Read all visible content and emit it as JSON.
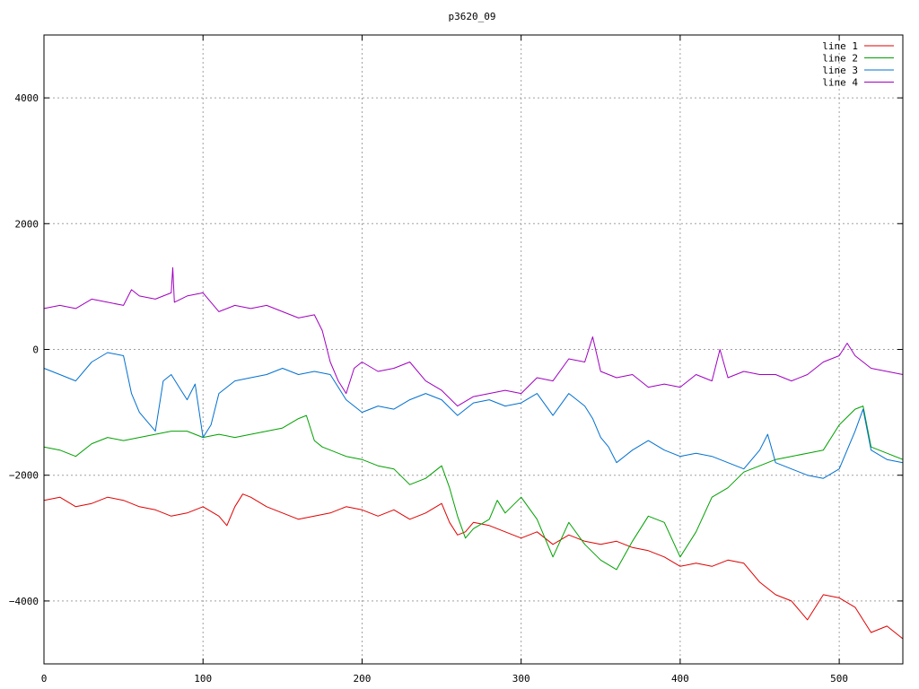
{
  "chart_data": {
    "type": "line",
    "title": "p3620_09",
    "xlabel": "",
    "ylabel": "",
    "xlim": [
      0,
      540
    ],
    "ylim": [
      -5000,
      5000
    ],
    "xticks": [
      0,
      100,
      200,
      300,
      400,
      500
    ],
    "yticks": [
      -4000,
      -2000,
      0,
      2000,
      4000
    ],
    "grid": true,
    "legend_position": "top-right",
    "series": [
      {
        "name": "line 1",
        "color": "#e00000",
        "x": [
          0,
          10,
          20,
          30,
          40,
          50,
          60,
          70,
          80,
          90,
          100,
          110,
          115,
          120,
          125,
          130,
          140,
          150,
          160,
          170,
          180,
          190,
          200,
          210,
          220,
          230,
          240,
          250,
          255,
          260,
          265,
          270,
          280,
          290,
          300,
          310,
          320,
          330,
          340,
          350,
          360,
          370,
          380,
          390,
          400,
          410,
          420,
          430,
          440,
          450,
          460,
          470,
          480,
          490,
          500,
          510,
          520,
          530,
          540
        ],
        "y": [
          -2400,
          -2350,
          -2500,
          -2450,
          -2350,
          -2400,
          -2500,
          -2550,
          -2650,
          -2600,
          -2500,
          -2650,
          -2800,
          -2500,
          -2300,
          -2350,
          -2500,
          -2600,
          -2700,
          -2650,
          -2600,
          -2500,
          -2550,
          -2650,
          -2550,
          -2700,
          -2600,
          -2450,
          -2750,
          -2950,
          -2900,
          -2750,
          -2800,
          -2900,
          -3000,
          -2900,
          -3100,
          -2950,
          -3050,
          -3100,
          -3050,
          -3150,
          -3200,
          -3300,
          -3450,
          -3400,
          -3450,
          -3350,
          -3400,
          -3700,
          -3900,
          -4000,
          -4300,
          -3900,
          -3950,
          -4100,
          -4500,
          -4400,
          -4600
        ]
      },
      {
        "name": "line 2",
        "color": "#00a000",
        "x": [
          0,
          10,
          20,
          30,
          40,
          50,
          60,
          70,
          80,
          90,
          100,
          110,
          120,
          130,
          140,
          150,
          160,
          165,
          170,
          175,
          180,
          190,
          200,
          210,
          220,
          230,
          240,
          250,
          255,
          260,
          265,
          270,
          280,
          285,
          290,
          300,
          310,
          320,
          330,
          340,
          350,
          360,
          370,
          380,
          390,
          400,
          410,
          420,
          430,
          440,
          450,
          460,
          470,
          480,
          490,
          500,
          510,
          515,
          520,
          530,
          540
        ],
        "y": [
          -1550,
          -1600,
          -1700,
          -1500,
          -1400,
          -1450,
          -1400,
          -1350,
          -1300,
          -1300,
          -1400,
          -1350,
          -1400,
          -1350,
          -1300,
          -1250,
          -1100,
          -1050,
          -1450,
          -1550,
          -1600,
          -1700,
          -1750,
          -1850,
          -1900,
          -2150,
          -2050,
          -1850,
          -2200,
          -2650,
          -3000,
          -2850,
          -2700,
          -2400,
          -2600,
          -2350,
          -2700,
          -3300,
          -2750,
          -3100,
          -3350,
          -3500,
          -3050,
          -2650,
          -2750,
          -3300,
          -2900,
          -2350,
          -2200,
          -1950,
          -1850,
          -1750,
          -1700,
          -1650,
          -1600,
          -1200,
          -950,
          -900,
          -1550,
          -1650,
          -1750
        ]
      },
      {
        "name": "line 3",
        "color": "#0070d0",
        "x": [
          0,
          10,
          20,
          30,
          40,
          50,
          55,
          60,
          70,
          75,
          80,
          85,
          90,
          95,
          100,
          105,
          110,
          120,
          130,
          140,
          150,
          160,
          170,
          180,
          190,
          200,
          210,
          220,
          230,
          240,
          250,
          260,
          270,
          280,
          290,
          300,
          310,
          320,
          330,
          340,
          345,
          350,
          355,
          360,
          370,
          380,
          390,
          400,
          410,
          420,
          430,
          440,
          450,
          455,
          460,
          470,
          480,
          490,
          500,
          510,
          515,
          520,
          530,
          540
        ],
        "y": [
          -300,
          -400,
          -500,
          -200,
          -50,
          -100,
          -700,
          -1000,
          -1300,
          -500,
          -400,
          -600,
          -800,
          -550,
          -1400,
          -1200,
          -700,
          -500,
          -450,
          -400,
          -300,
          -400,
          -350,
          -400,
          -800,
          -1000,
          -900,
          -950,
          -800,
          -700,
          -800,
          -1050,
          -850,
          -800,
          -900,
          -850,
          -700,
          -1050,
          -700,
          -900,
          -1100,
          -1400,
          -1550,
          -1800,
          -1600,
          -1450,
          -1600,
          -1700,
          -1650,
          -1700,
          -1800,
          -1900,
          -1600,
          -1350,
          -1800,
          -1900,
          -2000,
          -2050,
          -1900,
          -1300,
          -950,
          -1600,
          -1750,
          -1800
        ]
      },
      {
        "name": "line 4",
        "color": "#a000c0",
        "x": [
          0,
          10,
          20,
          30,
          40,
          50,
          55,
          60,
          70,
          75,
          80,
          81,
          82,
          90,
          100,
          110,
          120,
          130,
          140,
          150,
          160,
          170,
          175,
          180,
          185,
          190,
          195,
          200,
          210,
          220,
          230,
          240,
          250,
          260,
          270,
          280,
          290,
          300,
          310,
          320,
          330,
          340,
          345,
          350,
          360,
          370,
          380,
          390,
          400,
          410,
          420,
          425,
          430,
          440,
          450,
          460,
          470,
          480,
          490,
          500,
          505,
          510,
          520,
          530,
          540
        ],
        "y": [
          650,
          700,
          650,
          800,
          750,
          700,
          950,
          850,
          800,
          850,
          900,
          1300,
          750,
          850,
          900,
          600,
          700,
          650,
          700,
          600,
          500,
          550,
          300,
          -200,
          -500,
          -700,
          -300,
          -200,
          -350,
          -300,
          -200,
          -500,
          -650,
          -900,
          -750,
          -700,
          -650,
          -700,
          -450,
          -500,
          -150,
          -200,
          200,
          -350,
          -450,
          -400,
          -600,
          -550,
          -600,
          -400,
          -500,
          0,
          -450,
          -350,
          -400,
          -400,
          -500,
          -400,
          -200,
          -100,
          100,
          -100,
          -300,
          -350,
          -400
        ]
      }
    ]
  }
}
